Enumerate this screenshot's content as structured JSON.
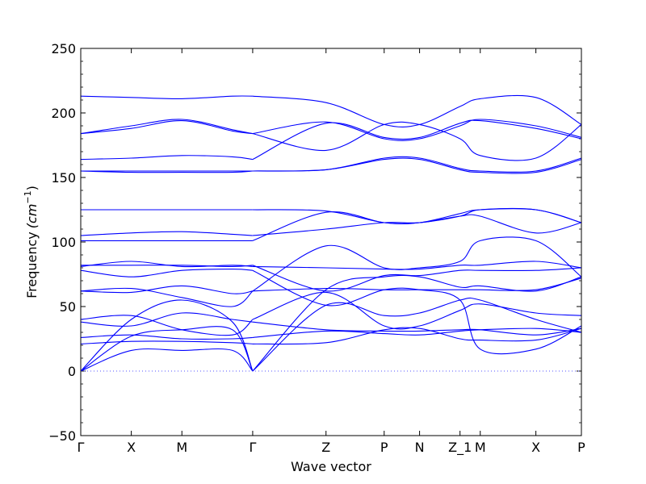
{
  "chart_data": {
    "type": "line",
    "xlabel": "Wave vector",
    "ylabel": "Frequency",
    "ylabel_unit": "(cm",
    "ylabel_exp": "−1",
    "ylabel_close": ")",
    "ylim": [
      -50,
      250
    ],
    "yticks": [
      -50,
      0,
      50,
      100,
      150,
      200,
      250
    ],
    "zero_line": true,
    "line_color": "#0000ff",
    "kpoints": [
      {
        "label": "Γ",
        "x": 0
      },
      {
        "label": "X",
        "x": 1
      },
      {
        "label": "M",
        "x": 2
      },
      {
        "label": "Γ",
        "x": 3.4
      },
      {
        "label": "Z",
        "x": 4.85
      },
      {
        "label": "P",
        "x": 6
      },
      {
        "label": "N",
        "x": 6.7
      },
      {
        "label": "Z_1",
        "x": 7.5
      },
      {
        "label": "M",
        "x": 7.9
      },
      {
        "label": "X",
        "x": 9
      },
      {
        "label": "P",
        "x": 9.9
      }
    ],
    "series": [
      {
        "x": [
          0,
          1,
          2,
          3,
          3.4
        ],
        "y": [
          0,
          16,
          16,
          16,
          0
        ]
      },
      {
        "x": [
          0,
          1,
          2,
          3,
          3.4
        ],
        "y": [
          0,
          27,
          32,
          32,
          0
        ]
      },
      {
        "x": [
          0,
          1,
          2,
          3,
          3.4
        ],
        "y": [
          0,
          40,
          55,
          38,
          0
        ]
      },
      {
        "x": [
          0,
          1,
          2,
          3,
          3.4
        ],
        "y": [
          21,
          23,
          23,
          22,
          21
        ]
      },
      {
        "x": [
          0,
          1,
          2,
          3,
          3.4
        ],
        "y": [
          26,
          28,
          25,
          25,
          26
        ]
      },
      {
        "x": [
          0,
          1,
          2,
          3,
          3.4
        ],
        "y": [
          38,
          35,
          45,
          40,
          38
        ]
      },
      {
        "x": [
          0,
          1,
          2,
          3,
          3.4
        ],
        "y": [
          40,
          43,
          32,
          28,
          40
        ]
      },
      {
        "x": [
          0,
          1,
          2,
          3,
          3.4
        ],
        "y": [
          62,
          64,
          57,
          50,
          62
        ]
      },
      {
        "x": [
          0,
          1,
          2,
          3,
          3.4
        ],
        "y": [
          62,
          61,
          66,
          60,
          62
        ]
      },
      {
        "x": [
          0,
          1,
          2,
          3,
          3.4
        ],
        "y": [
          78,
          73,
          78,
          79,
          78
        ]
      },
      {
        "x": [
          0,
          1,
          2,
          3,
          3.4
        ],
        "y": [
          81,
          85,
          81,
          82,
          81
        ]
      },
      {
        "x": [
          0,
          1,
          2,
          3,
          3.4
        ],
        "y": [
          82,
          82,
          82,
          81,
          82
        ]
      },
      {
        "x": [
          0,
          1,
          2,
          3,
          3.4
        ],
        "y": [
          101,
          101,
          101,
          101,
          101
        ]
      },
      {
        "x": [
          0,
          1,
          2,
          3,
          3.4
        ],
        "y": [
          105,
          107,
          108,
          106,
          105
        ]
      },
      {
        "x": [
          0,
          1,
          2,
          3,
          3.4
        ],
        "y": [
          125,
          125,
          125,
          125,
          125
        ]
      },
      {
        "x": [
          0,
          1,
          2,
          3,
          3.4
        ],
        "y": [
          155,
          154,
          154,
          154,
          155
        ]
      },
      {
        "x": [
          0,
          1,
          2,
          3,
          3.4
        ],
        "y": [
          155,
          155,
          155,
          155,
          155
        ]
      },
      {
        "x": [
          0,
          1,
          2,
          3,
          3.4
        ],
        "y": [
          164,
          165,
          167,
          166,
          164
        ]
      },
      {
        "x": [
          0,
          1,
          2,
          3,
          3.4
        ],
        "y": [
          184,
          188,
          194,
          186,
          184
        ]
      },
      {
        "x": [
          0,
          1,
          2,
          3,
          3.4
        ],
        "y": [
          184,
          190,
          195,
          187,
          184
        ]
      },
      {
        "x": [
          0,
          1,
          2,
          3,
          3.4
        ],
        "y": [
          213,
          212,
          211,
          213,
          213
        ]
      },
      {
        "x": [
          3.4,
          4.85,
          6,
          6.7,
          7.5,
          7.9,
          9,
          9.9
        ],
        "y": [
          0,
          51,
          43,
          45,
          55,
          55,
          40,
          30
        ]
      },
      {
        "x": [
          3.4,
          4.85,
          6,
          6.7,
          7.5,
          7.9,
          9,
          9.9
        ],
        "y": [
          0,
          63,
          73,
          73,
          65,
          66,
          62,
          73
        ]
      },
      {
        "x": [
          3.4,
          4.85,
          6,
          6.7,
          7.5,
          7.9,
          9,
          9.9
        ],
        "y": [
          21,
          22,
          32,
          33,
          25,
          24,
          24,
          33
        ]
      },
      {
        "x": [
          3.4,
          4.85,
          6,
          6.7,
          7.5,
          7.9,
          9,
          9.9
        ],
        "y": [
          26,
          31,
          29,
          28,
          31,
          32,
          33,
          30
        ]
      },
      {
        "x": [
          3.4,
          4.85,
          6,
          6.7,
          7.5,
          7.9,
          9,
          9.9
        ],
        "y": [
          38,
          32,
          31,
          31,
          32,
          32,
          28,
          33
        ]
      },
      {
        "x": [
          3.4,
          4.85,
          6,
          6.7,
          7.5,
          7.9,
          9,
          9.9
        ],
        "y": [
          40,
          61,
          35,
          35,
          47,
          52,
          45,
          43
        ]
      },
      {
        "x": [
          3.4,
          4.85,
          6,
          6.7,
          7.5,
          7.9,
          9,
          9.9
        ],
        "y": [
          62,
          97,
          80,
          80,
          85,
          101,
          101,
          73
        ]
      },
      {
        "x": [
          3.4,
          4.85,
          6,
          6.7,
          7.5,
          7.9,
          9,
          9.9
        ],
        "y": [
          62,
          64,
          63,
          63,
          63,
          63,
          63,
          72
        ]
      },
      {
        "x": [
          3.4,
          4.85,
          6,
          6.7,
          7.5,
          7.9,
          9,
          9.9
        ],
        "y": [
          78,
          51,
          63,
          63,
          55,
          17,
          17,
          35
        ]
      },
      {
        "x": [
          3.4,
          4.85,
          6,
          6.7,
          7.5,
          7.9,
          9,
          9.9
        ],
        "y": [
          81,
          80,
          79,
          79,
          82,
          82,
          85,
          80
        ]
      },
      {
        "x": [
          3.4,
          4.85,
          6,
          6.7,
          7.5,
          7.9,
          9,
          9.9
        ],
        "y": [
          82,
          62,
          74,
          74,
          78,
          78,
          78,
          80
        ]
      },
      {
        "x": [
          3.4,
          4.85,
          6,
          6.7,
          7.5,
          7.9,
          9,
          9.9
        ],
        "y": [
          101,
          123,
          115,
          115,
          122,
          125,
          125,
          115
        ]
      },
      {
        "x": [
          3.4,
          4.85,
          6,
          6.7,
          7.5,
          7.9,
          9,
          9.9
        ],
        "y": [
          105,
          110,
          115,
          115,
          120,
          120,
          107,
          115
        ]
      },
      {
        "x": [
          3.4,
          4.85,
          6,
          6.7,
          7.5,
          7.9,
          9,
          9.9
        ],
        "y": [
          125,
          124,
          115,
          115,
          120,
          125,
          125,
          115
        ]
      },
      {
        "x": [
          3.4,
          4.85,
          6,
          6.7,
          7.5,
          7.9,
          9,
          9.9
        ],
        "y": [
          155,
          156,
          164,
          164,
          156,
          154,
          154,
          164
        ]
      },
      {
        "x": [
          3.4,
          4.85,
          6,
          6.7,
          7.5,
          7.9,
          9,
          9.9
        ],
        "y": [
          155,
          156,
          165,
          165,
          157,
          155,
          155,
          165
        ]
      },
      {
        "x": [
          3.4,
          4.85,
          6,
          6.7,
          7.5,
          7.9,
          9,
          9.9
        ],
        "y": [
          164,
          192,
          181,
          181,
          192,
          194,
          188,
          180
        ]
      },
      {
        "x": [
          3.4,
          4.85,
          6,
          6.7,
          7.5,
          7.9,
          9,
          9.9
        ],
        "y": [
          184,
          193,
          180,
          180,
          190,
          195,
          190,
          181
        ]
      },
      {
        "x": [
          3.4,
          4.85,
          6,
          6.7,
          7.5,
          7.9,
          9,
          9.9
        ],
        "y": [
          184,
          171,
          191,
          191,
          180,
          167,
          165,
          191
        ]
      },
      {
        "x": [
          3.4,
          4.85,
          6,
          6.7,
          7.5,
          7.9,
          9,
          9.9
        ],
        "y": [
          213,
          208,
          191,
          191,
          205,
          211,
          212,
          191
        ]
      }
    ]
  }
}
